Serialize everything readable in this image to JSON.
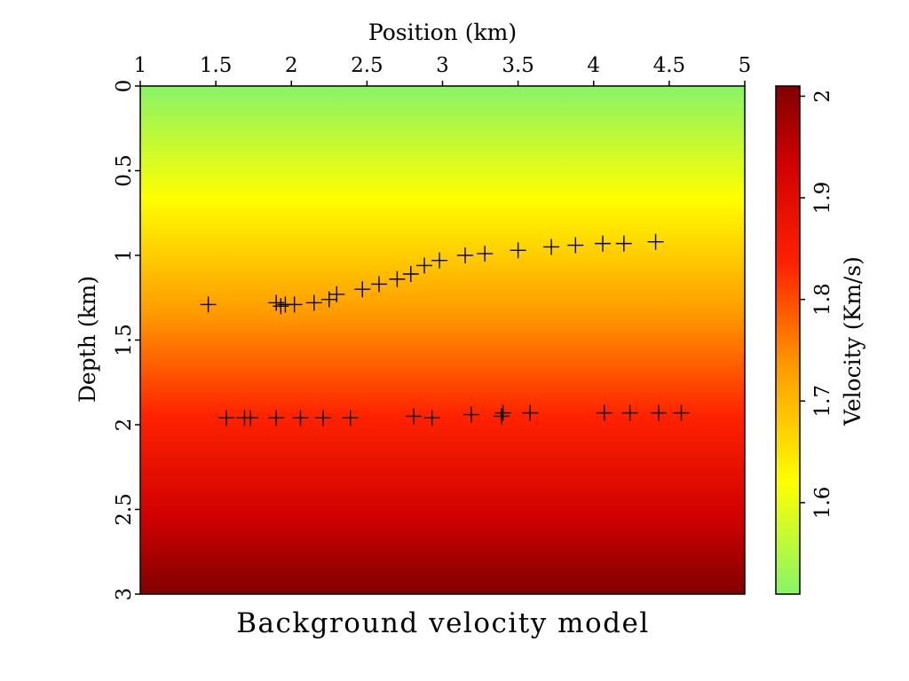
{
  "chart_data": {
    "type": "heatmap",
    "title": "Background velocity model",
    "xlabel": "Position (km)",
    "ylabel": "Depth (km)",
    "colorbar_label": "Velocity (Km/s)",
    "x_axis_position": "top",
    "xlim": [
      1,
      5
    ],
    "ylim": [
      0,
      3
    ],
    "y_inverted": true,
    "x_ticks": [
      1,
      1.5,
      2,
      2.5,
      3,
      3.5,
      4,
      4.5,
      5
    ],
    "x_tick_labels": [
      "1",
      "1.5",
      "2",
      "2.5",
      "3",
      "3.5",
      "4",
      "4.5",
      "5"
    ],
    "y_ticks": [
      0,
      0.5,
      1,
      1.5,
      2,
      2.5,
      3
    ],
    "y_tick_labels": [
      "0",
      "0.5",
      "1",
      "1.5",
      "2",
      "2.5",
      "3"
    ],
    "colorbar_range": [
      1.51,
      2.01
    ],
    "colorbar_ticks": [
      1.6,
      1.7,
      1.8,
      1.9,
      2
    ],
    "colorbar_tick_labels": [
      "1.6",
      "1.7",
      "1.8",
      "1.9",
      "2"
    ],
    "velocity_profile": {
      "depth": [
        0,
        3
      ],
      "velocity": [
        1.51,
        2.01
      ]
    },
    "colormap": [
      {
        "stop": 0.0,
        "color": "#88f468"
      },
      {
        "stop": 0.22,
        "color": "#ffff00"
      },
      {
        "stop": 0.45,
        "color": "#ff9900"
      },
      {
        "stop": 0.65,
        "color": "#ff2200"
      },
      {
        "stop": 0.85,
        "color": "#d00000"
      },
      {
        "stop": 1.0,
        "color": "#800000"
      }
    ],
    "marker_color": "#000000",
    "marker_symbol": "+",
    "series": [
      {
        "x": [
          1.45,
          1.9,
          1.93,
          1.96,
          2.02,
          2.15,
          2.25,
          2.3,
          2.47,
          2.58,
          2.7,
          2.79,
          2.88,
          2.98,
          3.15,
          3.28,
          3.5,
          3.72,
          3.88,
          4.06,
          4.2,
          4.41
        ],
        "y": [
          1.29,
          1.28,
          1.3,
          1.29,
          1.29,
          1.28,
          1.26,
          1.23,
          1.2,
          1.17,
          1.14,
          1.11,
          1.06,
          1.03,
          1.0,
          0.99,
          0.97,
          0.95,
          0.94,
          0.93,
          0.93,
          0.92
        ]
      },
      {
        "x": [
          1.57,
          1.69,
          1.73,
          1.9,
          2.06,
          2.21,
          2.39,
          2.81,
          2.93,
          3.19,
          3.39,
          3.4,
          3.58,
          4.07,
          4.24,
          4.43,
          4.58
        ],
        "y": [
          1.96,
          1.96,
          1.96,
          1.96,
          1.96,
          1.96,
          1.96,
          1.95,
          1.96,
          1.94,
          1.95,
          1.93,
          1.93,
          1.93,
          1.93,
          1.93,
          1.93
        ]
      }
    ]
  }
}
